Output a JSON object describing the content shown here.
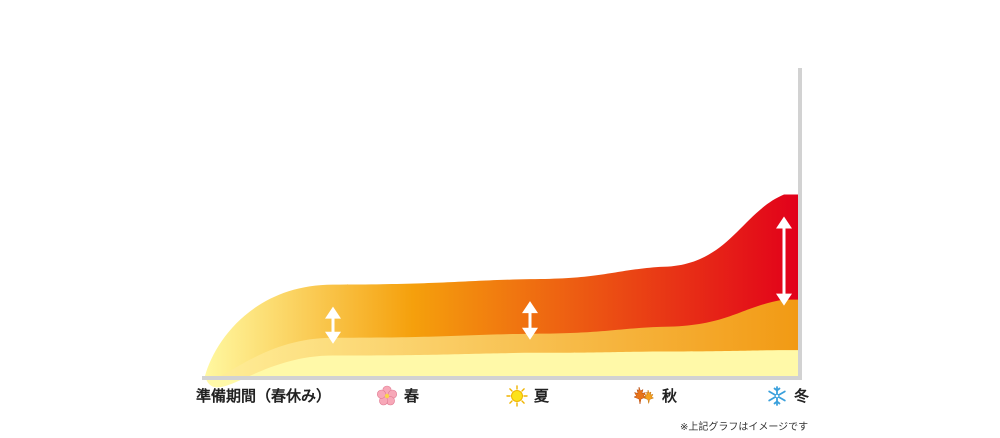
{
  "chart_data": {
    "type": "area",
    "title": "",
    "xlabel": "",
    "ylabel": "",
    "x_axis_lead_label": "準備期間（春休み）",
    "categories": [
      "春",
      "夏",
      "秋",
      "冬"
    ],
    "series": [
      {
        "values": [
          0.15,
          0.17,
          0.18,
          0.19
        ]
      },
      {
        "values": [
          0.28,
          0.31,
          0.36,
          0.56
        ]
      },
      {
        "values": [
          0.67,
          0.71,
          0.8,
          1.33
        ]
      }
    ],
    "arrows_between_layers_at": [
      "春",
      "夏",
      "冬"
    ],
    "ylim": [
      0,
      1.4
    ],
    "grid": false,
    "colors": {
      "base_layer": "#fff9a8",
      "middle_layer_start": "#ffef9a",
      "middle_layer_end": "#f29a14",
      "top_layer_start": "#fff8a0",
      "top_layer_mid": "#f5a00c",
      "top_layer_end": "#e2001a",
      "axis": "#d2d2d2",
      "arrow": "#ffffff"
    },
    "icons": {
      "spring": "cherry-blossom-icon",
      "summer": "sun-icon",
      "autumn": "maple-leaf-icon",
      "winter": "snowflake-icon"
    }
  },
  "footnote": "※上記グラフはイメージです"
}
